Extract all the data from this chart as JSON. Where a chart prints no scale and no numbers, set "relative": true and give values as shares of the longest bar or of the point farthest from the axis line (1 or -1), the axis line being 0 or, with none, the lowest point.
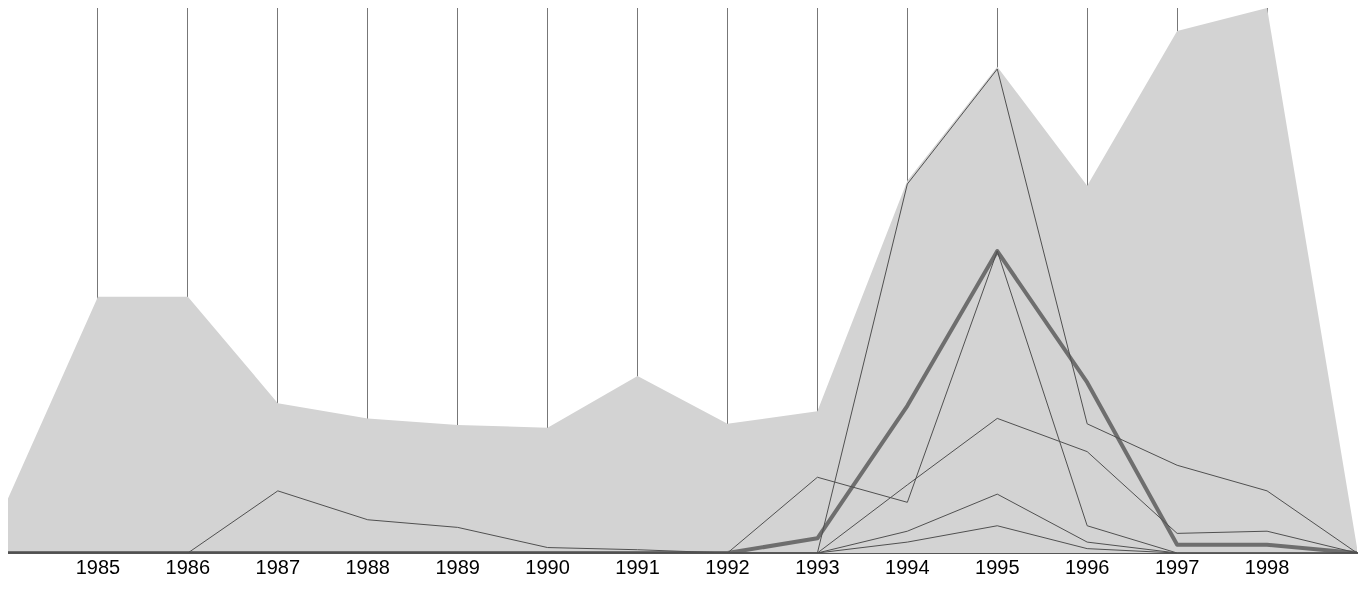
{
  "chart_data": {
    "type": "line",
    "relative": true,
    "x": [
      1984,
      1985,
      1986,
      1987,
      1988,
      1989,
      1990,
      1991,
      1992,
      1993,
      1994,
      1995,
      1996,
      1997,
      1998,
      1999
    ],
    "xlim": [
      1984,
      1999
    ],
    "xticks": [
      1985,
      1986,
      1987,
      1988,
      1989,
      1990,
      1991,
      1992,
      1993,
      1994,
      1995,
      1996,
      1997,
      1998
    ],
    "grid": "x",
    "line_style": "solid",
    "series": [
      {
        "type": "area",
        "color": "#d3d3d3",
        "values": [
          0.1,
          0.47,
          0.47,
          0.275,
          0.247,
          0.235,
          0.23,
          0.325,
          0.237,
          0.26,
          0.683,
          0.892,
          0.674,
          0.958,
          1,
          0.01
        ]
      },
      {
        "color": "#505050",
        "values": [
          0,
          0,
          0,
          0.114,
          0.061,
          0.047,
          0.01,
          0.006,
          0,
          0.139,
          0.093,
          0.554,
          0.05,
          0,
          0,
          0
        ]
      },
      {
        "color": "#505050",
        "values": [
          0,
          0,
          0,
          0,
          0,
          0,
          0,
          0,
          0,
          0,
          0.677,
          0.888,
          0.237,
          0.161,
          0.114,
          0
        ]
      },
      {
        "color": "#505050",
        "values": [
          0,
          0,
          0,
          0,
          0,
          0,
          0,
          0,
          0,
          0,
          0.125,
          0.247,
          0.186,
          0.036,
          0.04,
          0
        ]
      },
      {
        "color": "#505050",
        "values": [
          0,
          0,
          0,
          0,
          0,
          0,
          0,
          0,
          0,
          0,
          0.04,
          0.108,
          0.02,
          0,
          0,
          0
        ]
      },
      {
        "color": "#505050",
        "values": [
          0,
          0,
          0,
          0,
          0,
          0,
          0,
          0,
          0,
          0,
          0.02,
          0.05,
          0.008,
          0,
          0,
          0
        ]
      },
      {
        "color": "#6e6e6e",
        "values": [
          0,
          0,
          0,
          0,
          0,
          0,
          0,
          0,
          0,
          0.027,
          0.27,
          0.554,
          0.313,
          0.015,
          0.015,
          0
        ]
      }
    ]
  }
}
